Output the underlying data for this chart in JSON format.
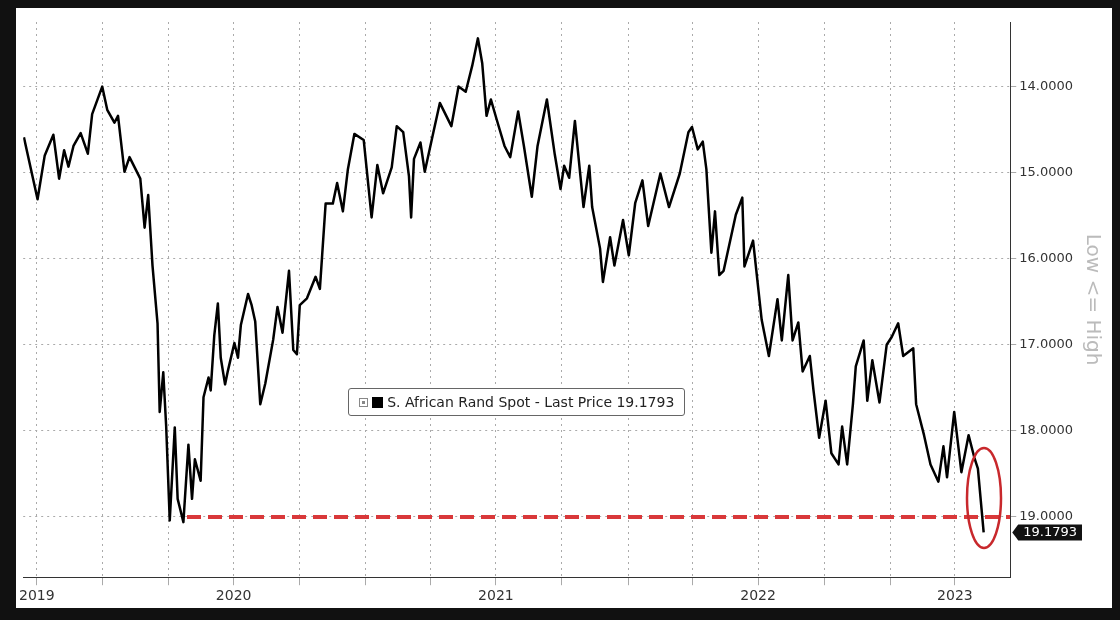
{
  "chart_data": {
    "type": "line",
    "ylabel": "Low <= High",
    "xlim": [
      "2019-09-12",
      "2023-06-17"
    ],
    "xticks": [
      {
        "value": "2019-10-01",
        "label": "2019"
      },
      {
        "value": "2020-01-01",
        "label": null
      },
      {
        "value": "2020-04-01",
        "label": null
      },
      {
        "value": "2020-07-01",
        "label": "2020"
      },
      {
        "value": "2020-10-01",
        "label": null
      },
      {
        "value": "2021-01-01",
        "label": null
      },
      {
        "value": "2021-04-01",
        "label": null
      },
      {
        "value": "2021-07-01",
        "label": "2021"
      },
      {
        "value": "2021-10-01",
        "label": null
      },
      {
        "value": "2022-01-01",
        "label": null
      },
      {
        "value": "2022-04-01",
        "label": null
      },
      {
        "value": "2022-07-01",
        "label": "2022"
      },
      {
        "value": "2022-10-01",
        "label": null
      },
      {
        "value": "2023-01-01",
        "label": null
      },
      {
        "value": "2023-04-01",
        "label": "2023"
      }
    ],
    "ylim": [
      19.7,
      13.25
    ],
    "yticks": [
      {
        "value": 14,
        "label": "14.0000"
      },
      {
        "value": 15,
        "label": "15.0000"
      },
      {
        "value": 16,
        "label": "16.0000"
      },
      {
        "value": 17,
        "label": "17.0000"
      },
      {
        "value": 18,
        "label": "18.0000"
      },
      {
        "value": 19,
        "label": "19.0000"
      }
    ],
    "grid": true,
    "legend": "bottom",
    "marker": "none",
    "annotations": [
      "19.1793"
    ],
    "series": [
      {
        "name": "S. African Rand Spot - Last Price 19.1793",
        "color": "#000000",
        "line_style": "solid",
        "x": [
          "2019-09-13",
          "2019-10-02",
          "2019-10-12",
          "2019-10-24",
          "2019-11-01",
          "2019-11-08",
          "2019-11-14",
          "2019-11-21",
          "2019-12-01",
          "2019-12-11",
          "2019-12-17",
          "2019-12-31",
          "2020-01-07",
          "2020-01-17",
          "2020-01-22",
          "2020-01-31",
          "2020-02-07",
          "2020-02-22",
          "2020-02-28",
          "2020-03-04",
          "2020-03-10",
          "2020-03-17",
          "2020-03-20",
          "2020-03-25",
          "2020-03-29",
          "2020-04-03",
          "2020-04-10",
          "2020-04-14",
          "2020-04-22",
          "2020-04-29",
          "2020-05-04",
          "2020-05-08",
          "2020-05-16",
          "2020-05-20",
          "2020-05-27",
          "2020-05-30",
          "2020-06-04",
          "2020-06-09",
          "2020-06-13",
          "2020-06-19",
          "2020-06-23",
          "2020-07-02",
          "2020-07-07",
          "2020-07-11",
          "2020-07-21",
          "2020-07-26",
          "2020-07-31",
          "2020-08-07",
          "2020-08-14",
          "2020-08-25",
          "2020-08-31",
          "2020-09-07",
          "2020-09-16",
          "2020-09-22",
          "2020-09-27",
          "2020-10-01",
          "2020-10-11",
          "2020-10-23",
          "2020-10-29",
          "2020-11-06",
          "2020-11-16",
          "2020-11-22",
          "2020-11-30",
          "2020-12-07",
          "2020-12-16",
          "2020-12-29",
          "2021-01-09",
          "2021-01-17",
          "2021-01-25",
          "2021-02-06",
          "2021-02-13",
          "2021-02-22",
          "2021-03-02",
          "2021-03-05",
          "2021-03-09",
          "2021-03-18",
          "2021-03-24",
          "2021-04-05",
          "2021-04-14",
          "2021-04-30",
          "2021-05-10",
          "2021-05-20",
          "2021-05-29",
          "2021-06-06",
          "2021-06-12",
          "2021-06-18",
          "2021-06-24",
          "2021-07-02",
          "2021-07-13",
          "2021-07-21",
          "2021-08-01",
          "2021-08-09",
          "2021-08-20",
          "2021-08-28",
          "2021-09-10",
          "2021-09-21",
          "2021-09-29",
          "2021-10-04",
          "2021-10-11",
          "2021-10-19",
          "2021-10-31",
          "2021-11-08",
          "2021-11-12",
          "2021-11-23",
          "2021-11-27",
          "2021-12-07",
          "2021-12-13",
          "2021-12-25",
          "2022-01-02",
          "2022-01-11",
          "2022-01-21",
          "2022-01-29",
          "2022-02-15",
          "2022-02-27",
          "2022-03-14",
          "2022-03-26",
          "2022-03-31",
          "2022-04-08",
          "2022-04-15",
          "2022-04-20",
          "2022-04-27",
          "2022-05-02",
          "2022-05-08",
          "2022-05-14",
          "2022-05-31",
          "2022-06-09",
          "2022-06-12",
          "2022-06-24",
          "2022-07-06",
          "2022-07-16",
          "2022-07-28",
          "2022-08-03",
          "2022-08-12",
          "2022-08-18",
          "2022-08-26",
          "2022-09-01",
          "2022-09-11",
          "2022-09-16",
          "2022-09-24",
          "2022-10-03",
          "2022-10-11",
          "2022-10-21",
          "2022-10-26",
          "2022-11-02",
          "2022-11-10",
          "2022-11-14",
          "2022-11-25",
          "2022-11-30",
          "2022-12-07",
          "2022-12-17",
          "2022-12-27",
          "2023-01-03",
          "2023-01-12",
          "2023-01-19",
          "2023-02-02",
          "2023-02-06",
          "2023-02-17",
          "2023-02-26",
          "2023-03-09",
          "2023-03-16",
          "2023-03-21",
          "2023-03-31",
          "2023-04-10",
          "2023-04-20",
          "2023-04-28",
          "2023-05-03",
          "2023-05-11"
        ],
        "values": [
          14.59,
          15.31,
          14.8,
          14.56,
          15.07,
          14.74,
          14.93,
          14.69,
          14.54,
          14.78,
          14.32,
          14.0,
          14.27,
          14.42,
          14.34,
          14.99,
          14.82,
          15.07,
          15.64,
          15.26,
          16.08,
          16.75,
          17.78,
          17.32,
          17.94,
          19.04,
          17.96,
          18.79,
          19.06,
          18.16,
          18.79,
          18.33,
          18.58,
          17.61,
          17.38,
          17.53,
          16.89,
          16.52,
          17.15,
          17.46,
          17.3,
          16.98,
          17.15,
          16.77,
          16.41,
          16.54,
          16.73,
          17.69,
          17.45,
          16.94,
          16.56,
          16.86,
          16.14,
          17.06,
          17.11,
          16.54,
          16.46,
          16.21,
          16.35,
          15.36,
          15.36,
          15.12,
          15.45,
          14.96,
          14.55,
          14.62,
          15.52,
          14.91,
          15.24,
          14.94,
          14.46,
          14.53,
          15.04,
          15.52,
          14.84,
          14.65,
          14.99,
          14.53,
          14.19,
          14.46,
          14.0,
          14.06,
          13.76,
          13.44,
          13.73,
          14.34,
          14.15,
          14.38,
          14.69,
          14.82,
          14.29,
          14.69,
          15.28,
          14.69,
          14.15,
          14.79,
          15.19,
          14.92,
          15.06,
          14.4,
          15.4,
          14.92,
          15.4,
          15.88,
          16.27,
          15.75,
          16.08,
          15.55,
          15.96,
          15.35,
          15.09,
          15.62,
          15.01,
          15.4,
          15.01,
          14.53,
          14.47,
          14.73,
          14.64,
          14.96,
          15.93,
          15.45,
          16.19,
          16.14,
          15.49,
          15.29,
          16.09,
          15.79,
          16.71,
          17.13,
          16.47,
          16.95,
          16.19,
          16.95,
          16.74,
          17.31,
          17.13,
          17.52,
          18.08,
          17.65,
          18.26,
          18.39,
          17.95,
          18.39,
          17.69,
          17.25,
          16.95,
          17.65,
          17.18,
          17.67,
          17.0,
          16.91,
          16.75,
          17.13,
          17.04,
          17.69,
          18.05,
          18.39,
          18.59,
          18.18,
          18.54,
          17.78,
          18.48,
          18.05,
          18.31,
          18.44,
          19.1793
        ]
      },
      {
        "color": "#d9383a",
        "line_style": "dashed",
        "x": [
          "2020-04-27",
          "2023-06-17"
        ],
        "values": [
          19.0,
          19.0
        ]
      }
    ]
  }
}
